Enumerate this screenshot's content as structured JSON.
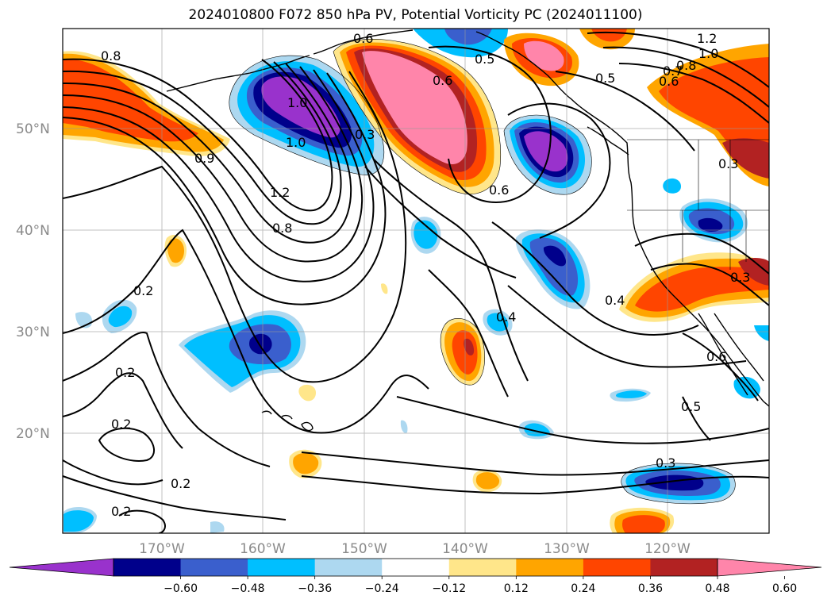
{
  "title": "2024010800 F072 850 hPa PV, Potential Vorticity PC (2024011100)",
  "map": {
    "lon_labels": [
      "170°W",
      "160°W",
      "150°W",
      "140°W",
      "130°W",
      "120°W"
    ],
    "lat_labels": [
      "50°N",
      "40°N",
      "30°N",
      "20°N"
    ],
    "contour_labels": [
      "0.8",
      "0.6",
      "0.5",
      "0.6",
      "0.5",
      "1.2",
      "1.0",
      "0.8",
      "0.7",
      "0.6",
      "1.0",
      "1.2",
      "0.8",
      "0.9",
      "0.3",
      "1.0",
      "0.6",
      "0.4",
      "0.4",
      "0.2",
      "0.2",
      "0.2",
      "0.2",
      "0.2",
      "0.3",
      "0.6",
      "0.5",
      "0.3",
      "0.3"
    ]
  },
  "colorbar": {
    "ticks": [
      "−0.60",
      "−0.48",
      "−0.36",
      "−0.24",
      "−0.12",
      "0.12",
      "0.24",
      "0.36",
      "0.48",
      "0.60"
    ],
    "colors": [
      "#9932cc",
      "#00008b",
      "#3a5fcd",
      "#00bfff",
      "#add8f0",
      "#ffffff",
      "#ffe68a",
      "#ffa500",
      "#ff4500",
      "#b22222",
      "#ff85aa"
    ]
  }
}
